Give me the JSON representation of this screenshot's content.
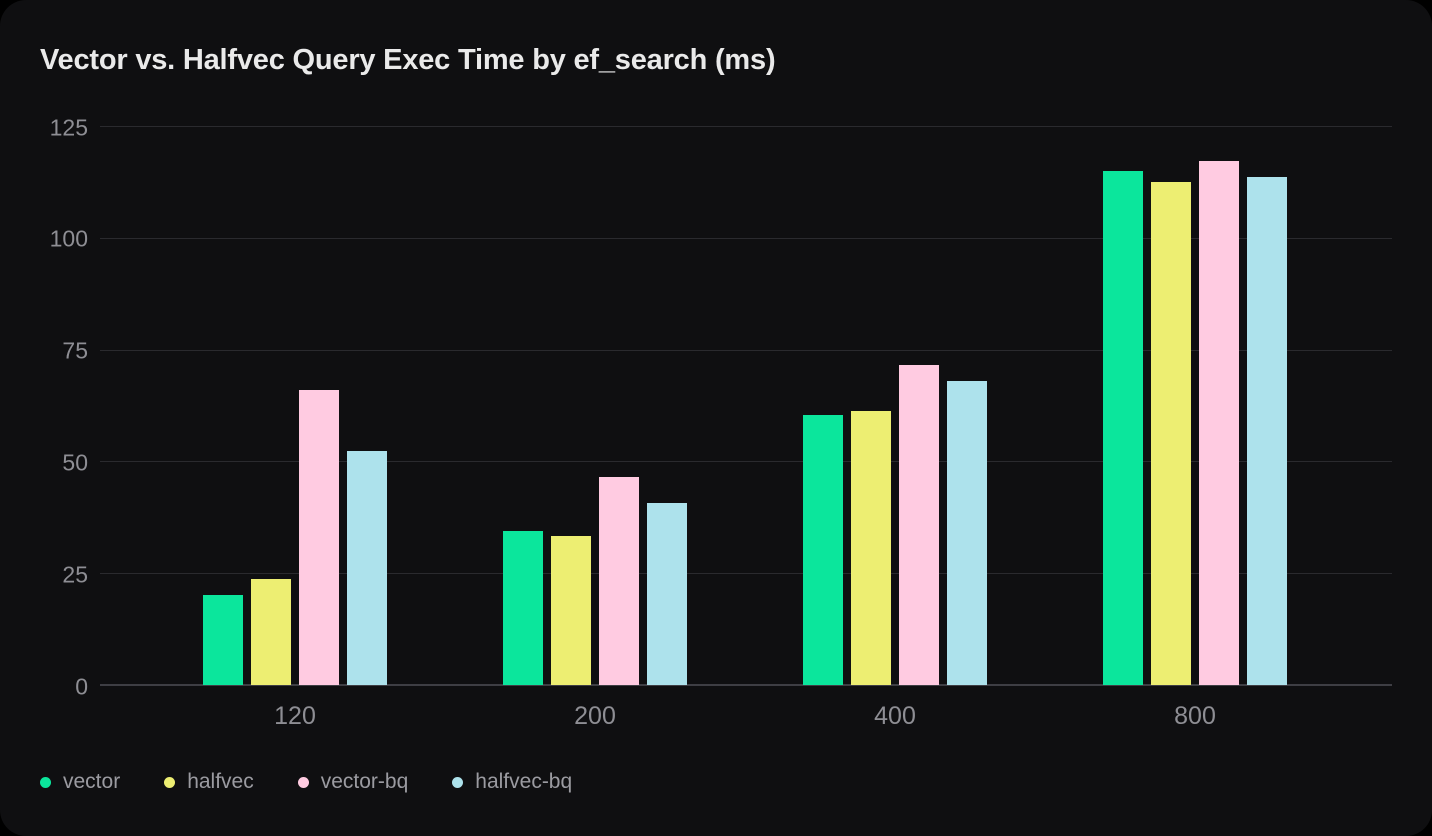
{
  "chart_data": {
    "type": "bar",
    "title": "Vector vs. Halfvec Query Exec Time by ef_search (ms)",
    "xlabel": "",
    "ylabel": "",
    "categories": [
      "120",
      "200",
      "400",
      "800"
    ],
    "series": [
      {
        "name": "vector",
        "color": "#0BE69C",
        "values": [
          20.2,
          34.5,
          60.4,
          115.0
        ]
      },
      {
        "name": "halfvec",
        "color": "#EDEE72",
        "values": [
          23.8,
          33.4,
          61.3,
          112.5
        ]
      },
      {
        "name": "vector-bq",
        "color": "#FFCBE1",
        "values": [
          65.9,
          46.5,
          71.6,
          117.2
        ]
      },
      {
        "name": "halfvec-bq",
        "color": "#ADE2EC",
        "values": [
          52.3,
          40.7,
          68.0,
          113.7
        ]
      }
    ],
    "ylim": [
      0,
      125
    ],
    "yticks": [
      0,
      25,
      50,
      75,
      100,
      125
    ],
    "grid": true,
    "legend_position": "bottom-left",
    "colors": {
      "card_background": "#0f0f11",
      "page_background": "#000000",
      "gridline": "#2a2a2e",
      "axis_line": "#3e3e44",
      "tick_text": "#8e8e94",
      "title_text": "#eaeaea",
      "legend_text": "#9b9ba1"
    }
  }
}
